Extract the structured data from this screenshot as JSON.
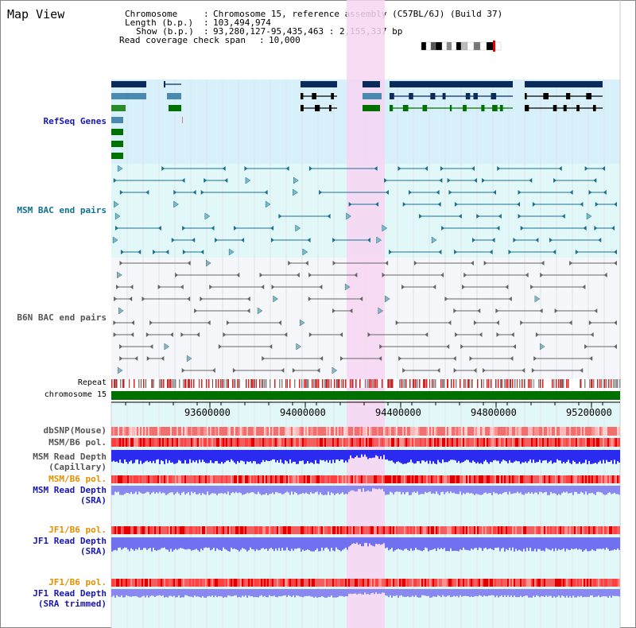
{
  "window": {
    "title": "Map View"
  },
  "info": {
    "chromosome_label": "Chromosome",
    "chromosome_value": "Chromosome 15, reference assembly (C57BL/6J) (Build 37)",
    "length_label": "Length (b.p.)",
    "length_value": "103,494,974",
    "show_label": "Show (b.p.)",
    "show_value": "93,280,127-95,435,463 : 2,155,337 bp",
    "coverage_label": "Read coverage check span",
    "coverage_value": "10,000"
  },
  "tracks": {
    "refseq": "RefSeq Genes",
    "msm_bac": "MSM BAC end pairs",
    "b6n_bac": "B6N BAC end pairs",
    "repeat": "Repeat",
    "chromosome": "chromosome 15",
    "dbsnp": "dbSNP(Mouse)",
    "msm_b6_pol_1": "MSM/B6 pol.",
    "msm_depth_cap_1": "MSM Read Depth",
    "msm_depth_cap_2": "(Capillary)",
    "msm_b6_pol_2": "MSM/B6 pol.",
    "msm_depth_sra_1": "MSM Read Depth",
    "msm_depth_sra_2": "(SRA)",
    "jf1_b6_pol_1": "JF1/B6 pol.",
    "jf1_depth_sra_1": "JF1 Read Depth",
    "jf1_depth_sra_2": "(SRA)",
    "jf1_b6_pol_2": "JF1/B6 pol.",
    "jf1_depth_trim_1": "JF1 Read Depth",
    "jf1_depth_trim_2": "(SRA trimmed)"
  },
  "axis": {
    "ticks": [
      "93600000",
      "94000000",
      "94400000",
      "94800000",
      "95200000"
    ]
  },
  "colors": {
    "refseq_bg": "#d8f0fa",
    "msm_bg": "#e2f7f7",
    "b6n_bg": "#f6f7fb",
    "highlight": "#f7d6f2",
    "repeat_red": "#e02020",
    "chromosome_green": "#007000",
    "pol_red": "#f06060",
    "depth_blue": "#2a2af0",
    "depth_light": "#8888f0"
  },
  "icons": [
    "chromosome-ideogram-icon"
  ]
}
